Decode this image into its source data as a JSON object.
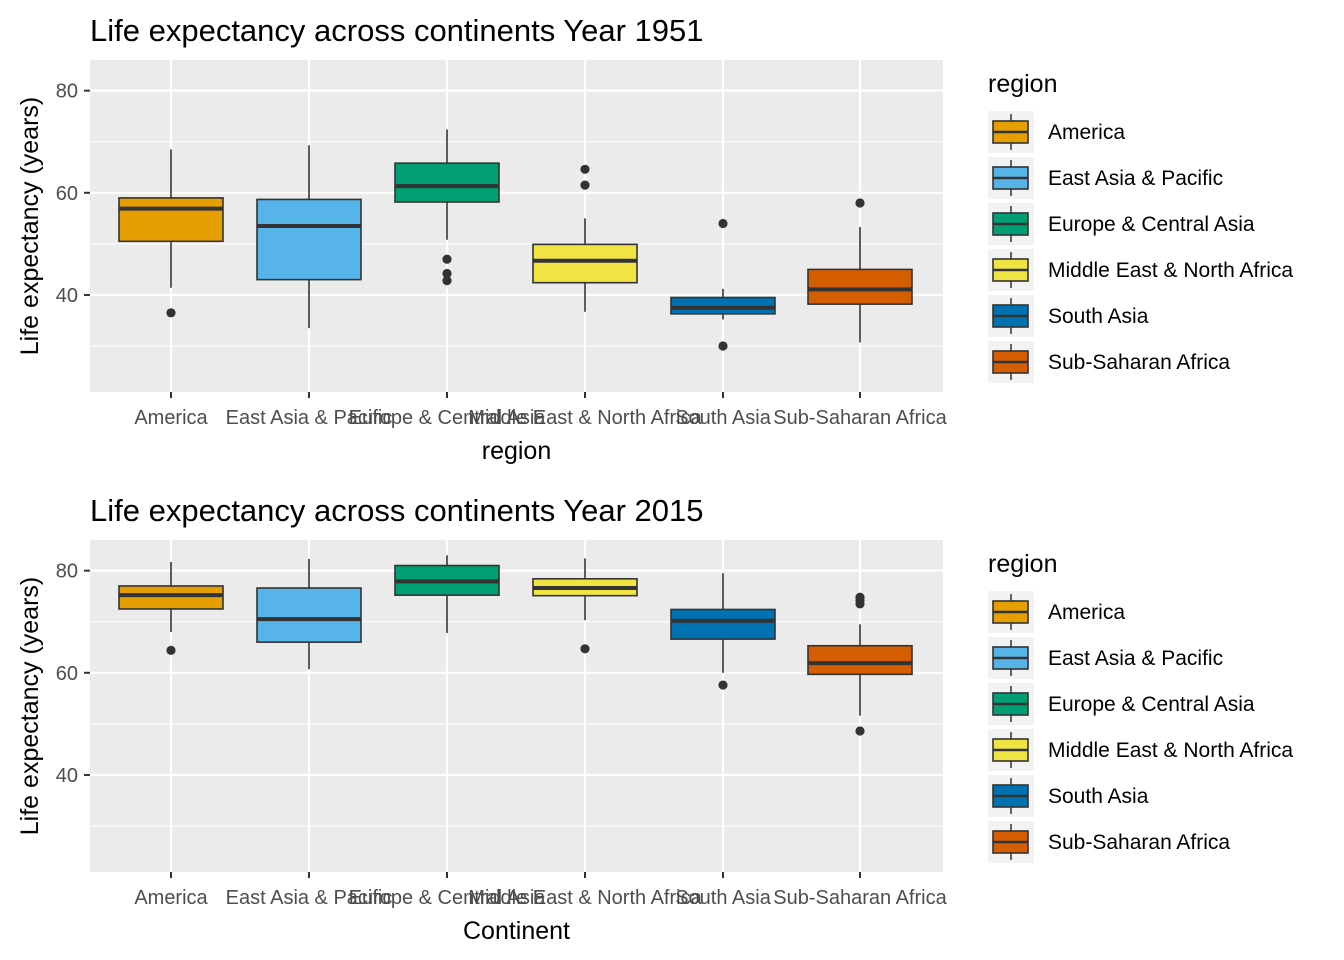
{
  "chart_data": [
    {
      "type": "boxplot",
      "title": "Life expectancy across continents Year 1951",
      "xlabel": "region",
      "ylabel": "Life expectancy (years)",
      "ylim": [
        21,
        86
      ],
      "yticks": [
        40,
        60,
        80
      ],
      "grid": true,
      "legend": {
        "title": "region",
        "position": "right"
      },
      "categories": [
        "America",
        "East Asia & Pacific",
        "Europe & Central Asia",
        "Middle East & North Africa",
        "South Asia",
        "Sub-Saharan Africa"
      ],
      "colors": [
        "#E69F00",
        "#56B4E9",
        "#009E73",
        "#F0E442",
        "#0072B2",
        "#D55E00"
      ],
      "boxes": [
        {
          "name": "America",
          "whisker_low": 41.4,
          "q1": 50.5,
          "median": 56.9,
          "q3": 59.0,
          "whisker_high": 68.5,
          "outliers": [
            36.5
          ]
        },
        {
          "name": "East Asia & Pacific",
          "whisker_low": 33.5,
          "q1": 43.0,
          "median": 53.5,
          "q3": 58.7,
          "whisker_high": 69.3,
          "outliers": []
        },
        {
          "name": "Europe & Central Asia",
          "whisker_low": 50.8,
          "q1": 58.2,
          "median": 61.3,
          "q3": 65.8,
          "whisker_high": 72.4,
          "outliers": [
            47.0,
            44.2,
            42.8
          ]
        },
        {
          "name": "Middle East & North Africa",
          "whisker_low": 36.7,
          "q1": 42.4,
          "median": 46.7,
          "q3": 49.9,
          "whisker_high": 55.0,
          "outliers": [
            64.6,
            61.5
          ]
        },
        {
          "name": "South Asia",
          "whisker_low": 35.2,
          "q1": 36.3,
          "median": 37.5,
          "q3": 39.5,
          "whisker_high": 41.2,
          "outliers": [
            54.0,
            30.0
          ]
        },
        {
          "name": "Sub-Saharan Africa",
          "whisker_low": 30.7,
          "q1": 38.2,
          "median": 41.1,
          "q3": 45.0,
          "whisker_high": 53.3,
          "outliers": [
            58.0
          ]
        }
      ]
    },
    {
      "type": "boxplot",
      "title": "Life expectancy across continents Year 2015",
      "xlabel": "Continent",
      "ylabel": "Life expectancy (years)",
      "ylim": [
        21,
        86
      ],
      "yticks": [
        40,
        60,
        80
      ],
      "grid": true,
      "legend": {
        "title": "region",
        "position": "right"
      },
      "categories": [
        "America",
        "East Asia & Pacific",
        "Europe & Central Asia",
        "Middle East & North Africa",
        "South Asia",
        "Sub-Saharan Africa"
      ],
      "colors": [
        "#E69F00",
        "#56B4E9",
        "#009E73",
        "#F0E442",
        "#0072B2",
        "#D55E00"
      ],
      "boxes": [
        {
          "name": "America",
          "whisker_low": 68.0,
          "q1": 72.5,
          "median": 75.2,
          "q3": 77.0,
          "whisker_high": 81.7,
          "outliers": [
            64.4
          ]
        },
        {
          "name": "East Asia & Pacific",
          "whisker_low": 60.7,
          "q1": 66.0,
          "median": 70.5,
          "q3": 76.6,
          "whisker_high": 82.3,
          "outliers": []
        },
        {
          "name": "Europe & Central Asia",
          "whisker_low": 67.8,
          "q1": 75.2,
          "median": 77.9,
          "q3": 81.0,
          "whisker_high": 83.0,
          "outliers": []
        },
        {
          "name": "Middle East & North Africa",
          "whisker_low": 70.3,
          "q1": 75.1,
          "median": 76.6,
          "q3": 78.4,
          "whisker_high": 82.4,
          "outliers": [
            64.7
          ]
        },
        {
          "name": "South Asia",
          "whisker_low": 60.0,
          "q1": 66.6,
          "median": 70.2,
          "q3": 72.4,
          "whisker_high": 79.5,
          "outliers": [
            57.6
          ]
        },
        {
          "name": "Sub-Saharan Africa",
          "whisker_low": 51.6,
          "q1": 59.7,
          "median": 61.9,
          "q3": 65.3,
          "whisker_high": 69.5,
          "outliers": [
            74.8,
            74.2,
            73.5,
            48.6
          ]
        }
      ]
    }
  ]
}
